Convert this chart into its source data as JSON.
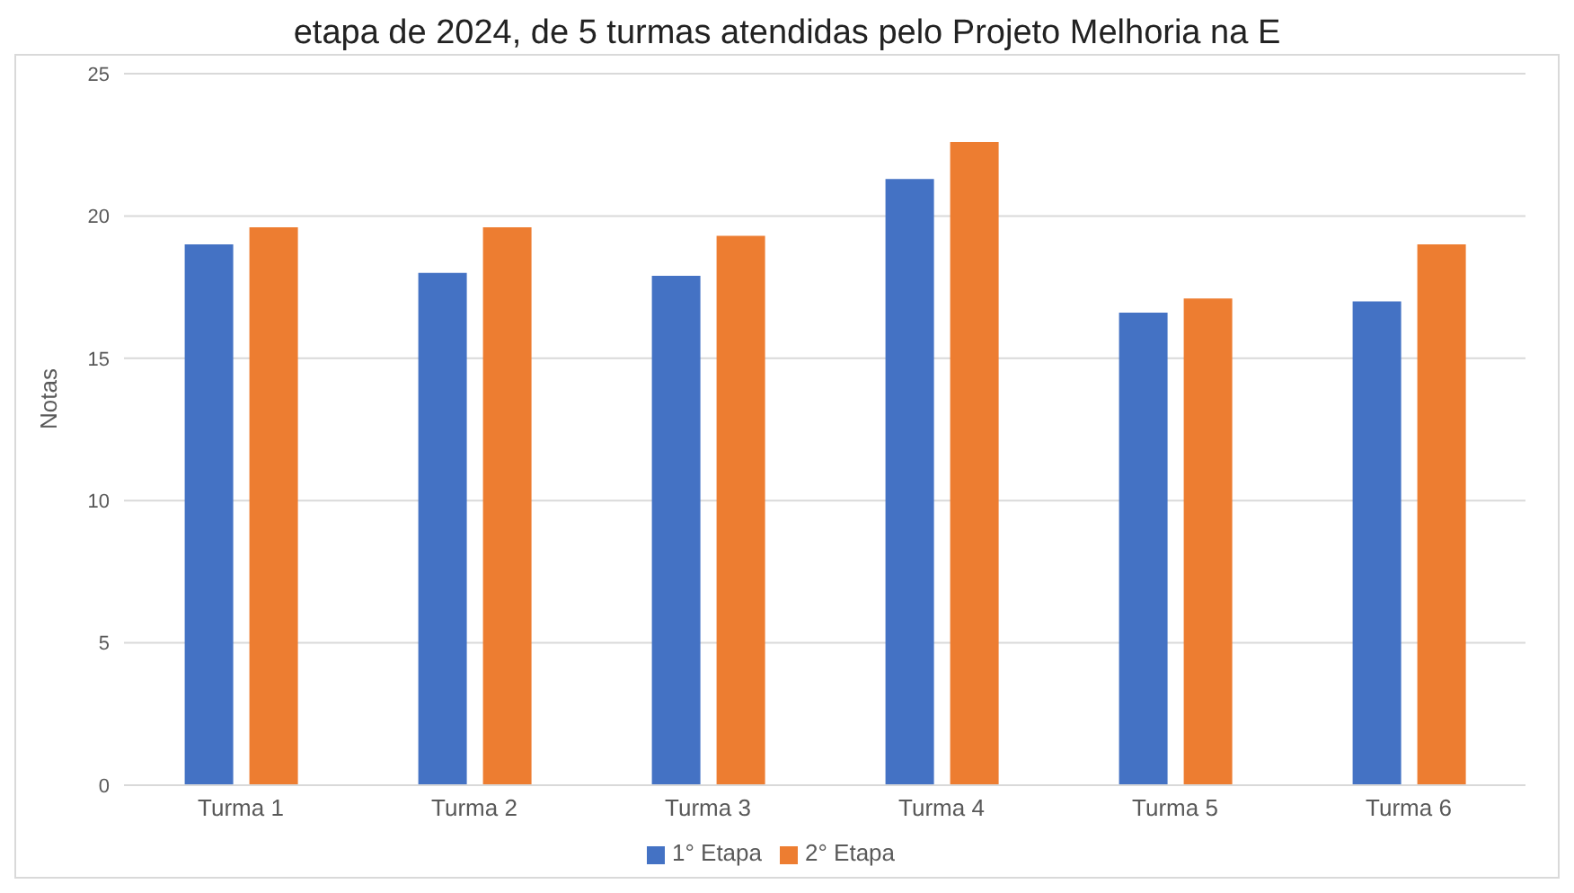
{
  "chart_data": {
    "type": "bar",
    "title": "etapa de 2024, de 5 turmas atendidas pelo Projeto Melhoria na E",
    "ylabel": "Notas",
    "categories": [
      "Turma 1",
      "Turma 2",
      "Turma 3",
      "Turma 4",
      "Turma 5",
      "Turma 6"
    ],
    "series": [
      {
        "name": "1° Etapa",
        "color": "#4472c4",
        "values": [
          19.0,
          18.0,
          17.9,
          21.3,
          16.6,
          17.0
        ]
      },
      {
        "name": "2° Etapa",
        "color": "#ed7d31",
        "values": [
          19.6,
          19.6,
          19.3,
          22.6,
          17.1,
          19.0
        ]
      }
    ],
    "ylim": [
      0,
      25
    ],
    "yticks": [
      0,
      5,
      10,
      15,
      20,
      25
    ],
    "grid": "y",
    "legend": "bottom"
  }
}
